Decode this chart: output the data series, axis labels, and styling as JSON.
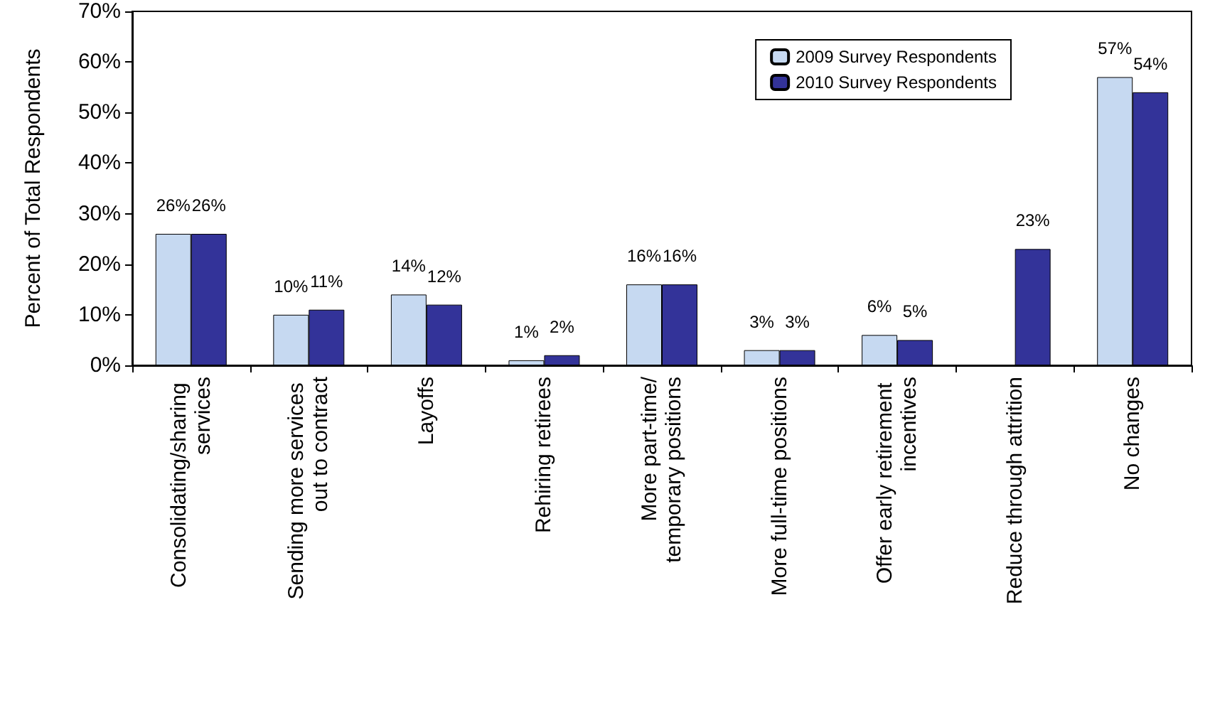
{
  "chart_data": {
    "type": "bar",
    "ylabel": "Percent of Total Respondents",
    "categories": [
      "Consolidating/sharing services",
      "Sending more services out to contract",
      "Layoffs",
      "Rehiring retirees",
      "More part-time/temporary positions",
      "More full-time positions",
      "Offer early retirement incentives",
      "Reduce through attrition",
      "No changes"
    ],
    "series": [
      {
        "name": "2009 Survey Respondents",
        "color": "#c6d9f1",
        "values": [
          26,
          10,
          14,
          1,
          16,
          3,
          6,
          null,
          57
        ],
        "value_labels": [
          "26%",
          "10%",
          "14%",
          "1%",
          "16%",
          "3%",
          "6%",
          null,
          "57%"
        ]
      },
      {
        "name": "2010 Survey Respondents",
        "color": "#333399",
        "values": [
          26,
          11,
          12,
          2,
          16,
          3,
          5,
          23,
          54
        ],
        "value_labels": [
          "26%",
          "11%",
          "12%",
          "2%",
          "16%",
          "3%",
          "5%",
          "23%",
          "54%"
        ]
      }
    ],
    "ylim": [
      0,
      70
    ],
    "yticks": [
      {
        "value": 0,
        "label": "0%"
      },
      {
        "value": 10,
        "label": "10%"
      },
      {
        "value": 20,
        "label": "20%"
      },
      {
        "value": 30,
        "label": "30%"
      },
      {
        "value": 40,
        "label": "40%"
      },
      {
        "value": 50,
        "label": "50%"
      },
      {
        "value": 60,
        "label": "60%"
      },
      {
        "value": 70,
        "label": "70%"
      }
    ],
    "grid": false,
    "legend": "top right"
  }
}
